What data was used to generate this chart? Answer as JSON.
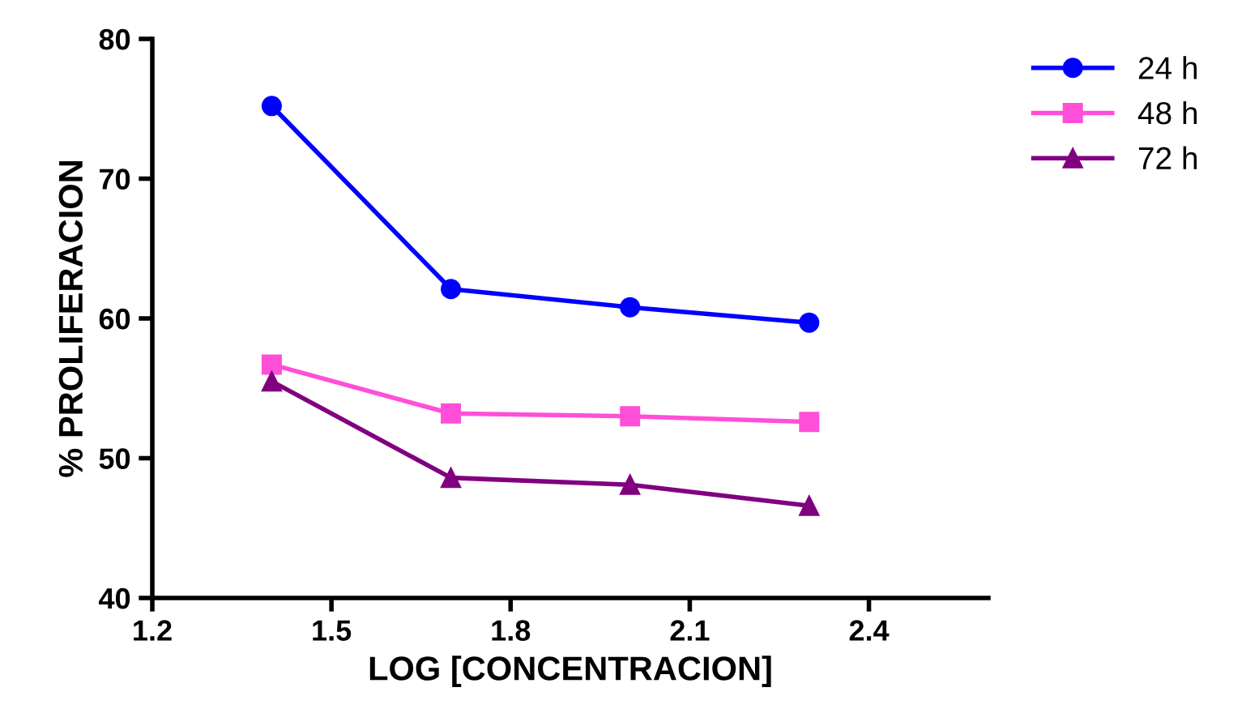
{
  "chart_data": {
    "type": "line",
    "xlabel": "LOG [CONCENTRACION]",
    "ylabel": "% PROLIFERACION",
    "x": [
      1.4,
      1.7,
      2.0,
      2.3
    ],
    "series": [
      {
        "name": "24 h",
        "color": "#0000ff",
        "marker": "circle",
        "values": [
          75.2,
          62.1,
          60.8,
          59.7
        ]
      },
      {
        "name": "48 h",
        "color": "#ff4fd8",
        "marker": "square",
        "values": [
          56.7,
          53.2,
          53.0,
          52.6
        ]
      },
      {
        "name": "72 h",
        "color": "#800080",
        "marker": "triangle",
        "values": [
          55.5,
          48.6,
          48.1,
          46.6
        ]
      }
    ],
    "xlim": [
      1.2,
      2.6
    ],
    "xticks": [
      1.2,
      1.5,
      1.8,
      2.1,
      2.4
    ],
    "ylim": [
      40,
      80
    ],
    "yticks": [
      40,
      50,
      60,
      70,
      80
    ],
    "grid": false,
    "legend": "top right",
    "line_style": "solid"
  }
}
